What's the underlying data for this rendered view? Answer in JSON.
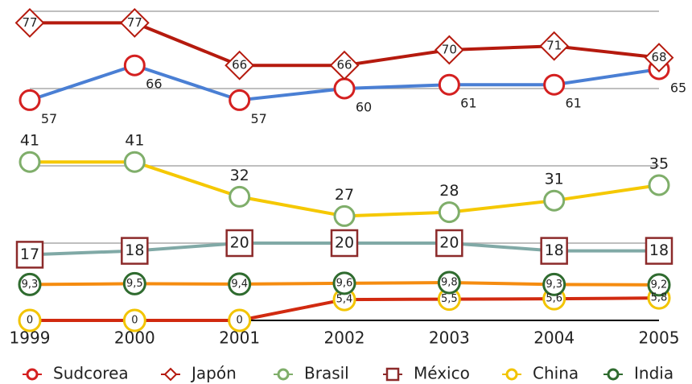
{
  "chart_data": {
    "type": "line",
    "categories": [
      "1999",
      "2000",
      "2001",
      "2002",
      "2003",
      "2004",
      "2005"
    ],
    "ylim": [
      0,
      80
    ],
    "yticks": [
      0,
      20,
      40,
      60,
      80
    ],
    "grid": true,
    "legend": "bottom",
    "series": [
      {
        "name": "Sudcorea",
        "color": "#4a7fd4",
        "marker": "circle",
        "marker_color": "#d42020",
        "values": [
          57,
          66,
          57,
          60,
          61,
          61,
          65
        ]
      },
      {
        "name": "Japón",
        "color": "#b51a0e",
        "marker": "diamond",
        "marker_color": "#b51a0e",
        "values": [
          77,
          77,
          66,
          66,
          70,
          71,
          68
        ]
      },
      {
        "name": "Brasil",
        "color": "#f5c800",
        "marker": "circle",
        "marker_color": "#7fae6a",
        "values": [
          41,
          41,
          32,
          27,
          28,
          31,
          35
        ]
      },
      {
        "name": "México",
        "color": "#80a9a6",
        "marker": "square",
        "marker_color": "#8c2a2a",
        "values": [
          17,
          18,
          20,
          20,
          20,
          18,
          18
        ]
      },
      {
        "name": "China",
        "color": "#d12a10",
        "marker": "circle",
        "marker_color": "#f2c400",
        "values": [
          0,
          0,
          0,
          5.4,
          5.5,
          5.6,
          5.8
        ],
        "value_labels": [
          "0",
          "0",
          "0",
          "5,4",
          "5,5",
          "5,6",
          "5,8"
        ]
      },
      {
        "name": "India",
        "color": "#f58c10",
        "marker": "circle",
        "marker_color": "#2f6b2f",
        "values": [
          9.3,
          9.5,
          9.4,
          9.6,
          9.8,
          9.3,
          9.2
        ],
        "value_labels": [
          "9,3",
          "9,5",
          "9,4",
          "9,6",
          "9,8",
          "9,3",
          "9,2"
        ]
      }
    ]
  }
}
